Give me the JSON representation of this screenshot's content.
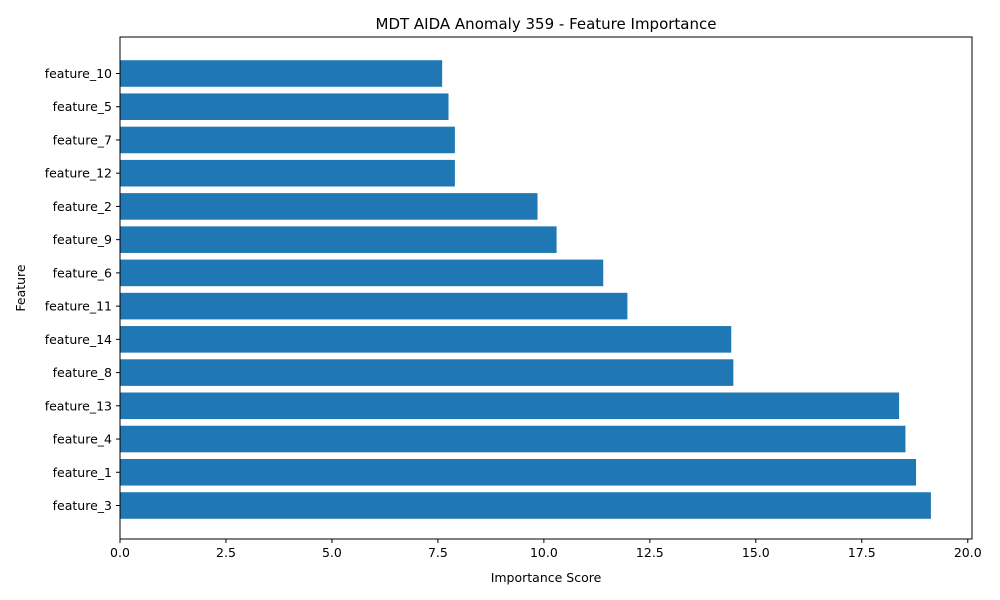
{
  "chart_data": {
    "type": "bar",
    "orientation": "horizontal",
    "title": "MDT AIDA Anomaly 359 - Feature Importance",
    "xlabel": "Importance Score",
    "ylabel": "Feature",
    "xlim": [
      0,
      20.1
    ],
    "xticks": [
      "0.0",
      "2.5",
      "5.0",
      "7.5",
      "10.0",
      "12.5",
      "15.0",
      "17.5",
      "20.0"
    ],
    "xtick_values": [
      0,
      2.5,
      5,
      7.5,
      10,
      12.5,
      15,
      17.5,
      20
    ],
    "categories": [
      "feature_10",
      "feature_5",
      "feature_7",
      "feature_12",
      "feature_2",
      "feature_9",
      "feature_6",
      "feature_11",
      "feature_14",
      "feature_8",
      "feature_13",
      "feature_4",
      "feature_1",
      "feature_3"
    ],
    "values": [
      7.6,
      7.75,
      7.9,
      7.9,
      9.85,
      10.3,
      11.4,
      11.97,
      14.42,
      14.47,
      18.38,
      18.53,
      18.78,
      19.13
    ],
    "bar_color": "#1f77b4",
    "grid": false,
    "legend": "none"
  }
}
